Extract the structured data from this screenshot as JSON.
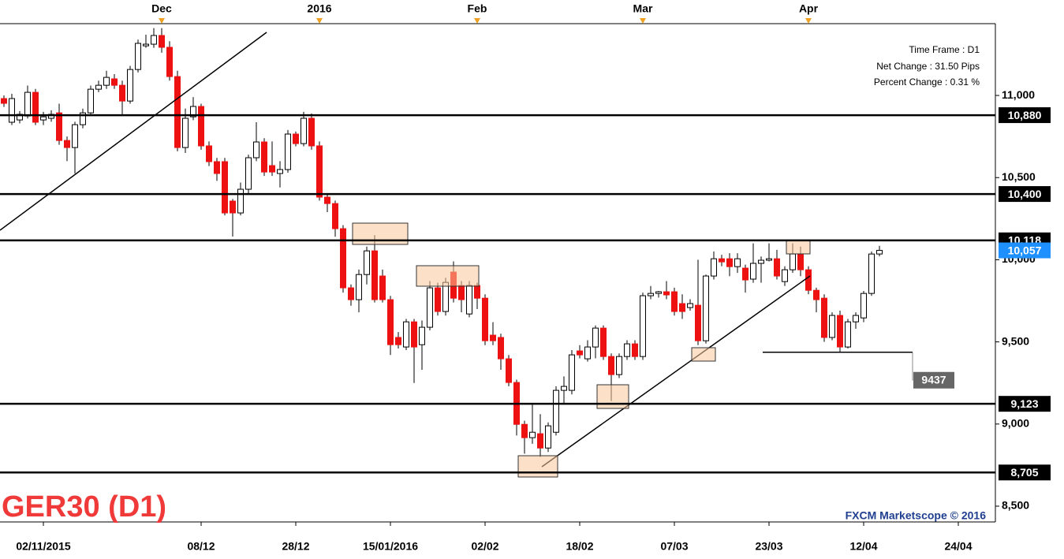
{
  "chart_data": {
    "type": "candlestick",
    "title": "GER30 (D1)",
    "watermark": "FXCM Marketscope © 2016",
    "info": [
      "Time Frame : D1",
      "Net Change : 31.50 Pips",
      "Percent Change : 0.31 %"
    ],
    "up_color": "#ffffff",
    "down_color": "#ee1111",
    "xlim": [
      -0.5,
      125.7
    ],
    "xticks": [
      {
        "value": 5,
        "label": "02/11/2015"
      },
      {
        "value": 25,
        "label": "08/12"
      },
      {
        "value": 37,
        "label": "28/12"
      },
      {
        "value": 49,
        "label": "15/01/2016"
      },
      {
        "value": 61,
        "label": "02/02"
      },
      {
        "value": 73,
        "label": "18/02"
      },
      {
        "value": 85,
        "label": "07/03"
      },
      {
        "value": 97,
        "label": "23/03"
      },
      {
        "value": 109,
        "label": "12/04"
      },
      {
        "value": 121,
        "label": "24/04"
      }
    ],
    "x2ticks": [
      {
        "value": 20,
        "label": "Dec"
      },
      {
        "value": 40,
        "label": "2016"
      },
      {
        "value": 60,
        "label": "Feb"
      },
      {
        "value": 81,
        "label": "Mar"
      },
      {
        "value": 102,
        "label": "Apr"
      }
    ],
    "ylim": [
      8404,
      11437
    ],
    "yticks": [
      {
        "value": 8500,
        "label": "8,500"
      },
      {
        "value": 9000,
        "label": "9,000"
      },
      {
        "value": 9500,
        "label": "9,500"
      },
      {
        "value": 10000,
        "label": "10,000"
      },
      {
        "value": 10500,
        "label": "10,500"
      },
      {
        "value": 11000,
        "label": "11,000"
      }
    ],
    "levels": [
      {
        "value": 10880,
        "label": "10,880"
      },
      {
        "value": 10400,
        "label": "10,400"
      },
      {
        "value": 10118,
        "label": "10,118"
      },
      {
        "value": 9123,
        "label": "9,123"
      },
      {
        "value": 8705,
        "label": "8,705"
      }
    ],
    "last_price": {
      "value": 10057,
      "label": "10,057"
    },
    "last_price_color": "#1e90ff",
    "support_marker": 9437,
    "open": [
      10981,
      10837,
      10851,
      10875,
      11019,
      10851,
      10861,
      10894,
      10726,
      10683,
      10822,
      10894,
      11038,
      11062,
      11101,
      11062,
      10966,
      11158,
      11302,
      11312,
      11365,
      11293,
      11115,
      10683,
      10870,
      10933,
      10693,
      10597,
      10597,
      10357,
      10285,
      10429,
      10621,
      10717,
      10573,
      10525,
      10549,
      10765,
      10707,
      10861,
      10693,
      10381,
      10342,
      10189,
      9829,
      9757,
      9910,
      10054,
      9901,
      9757,
      9527,
      9469,
      9622,
      9483,
      9589,
      9829,
      9685,
      9925,
      9843,
      9670,
      9843,
      9766,
      9541,
      9527,
      9397,
      9253,
      8998,
      8917,
      8941,
      8854,
      8950,
      9205,
      9205,
      9445,
      9397,
      9469,
      9584,
      9411,
      9301,
      9411,
      9488,
      9411,
      9781,
      9795,
      9805,
      9805,
      9733,
      9709,
      9723,
      9507,
      9901,
      10006,
      10006,
      9958,
      9949,
      9882,
      9978,
      9997,
      10006,
      9867,
      9939,
      10035,
      9939,
      9814,
      9766,
      9527,
      9661,
      9469,
      9622,
      9646,
      9795,
      10035
    ],
    "high": [
      11000,
      11010,
      10905,
      11060,
      11040,
      10900,
      10910,
      10950,
      10750,
      10840,
      10920,
      11060,
      11090,
      11150,
      11130,
      11090,
      11180,
      11340,
      11370,
      11410,
      11410,
      11330,
      11150,
      10920,
      10990,
      10950,
      10720,
      10620,
      10620,
      10370,
      10470,
      10640,
      10837,
      10740,
      10720,
      10600,
      10790,
      10780,
      10900,
      10890,
      10720,
      10400,
      10360,
      10210,
      9850,
      9940,
      10080,
      10150,
      9940,
      9780,
      9560,
      9640,
      9640,
      9630,
      9870,
      9860,
      9890,
      9990,
      9870,
      9870,
      9860,
      9790,
      9620,
      9550,
      9420,
      9270,
      9020,
      9120,
      9060,
      9010,
      9230,
      9290,
      9450,
      9480,
      9510,
      9600,
      9600,
      9430,
      9430,
      9510,
      9510,
      9800,
      9840,
      9810,
      9870,
      9830,
      9790,
      9760,
      10000,
      9910,
      10050,
      10030,
      10040,
      10040,
      9970,
      10100,
      10020,
      10100,
      10060,
      9960,
      10100,
      10080,
      9960,
      9830,
      9790,
      9680,
      9690,
      9640,
      9680,
      9810,
      10050,
      10085
    ],
    "low": [
      10930,
      10820,
      10830,
      10860,
      10820,
      10820,
      10840,
      10700,
      10600,
      10525,
      10800,
      10880,
      11020,
      11040,
      11040,
      10880,
      10950,
      11140,
      11290,
      11290,
      11260,
      11090,
      10660,
      10650,
      10850,
      10670,
      10570,
      10480,
      10270,
      10141,
      10270,
      10400,
      10600,
      10510,
      10510,
      10440,
      10530,
      10690,
      10690,
      10670,
      10360,
      10290,
      10140,
      9800,
      9720,
      9680,
      9850,
      9740,
      9740,
      9420,
      9460,
      9450,
      9250,
      9330,
      9570,
      9660,
      9660,
      9740,
      9680,
      9650,
      9700,
      9480,
      9480,
      9330,
      9230,
      8930,
      8820,
      8880,
      8800,
      8830,
      8930,
      9120,
      9180,
      9400,
      9380,
      9400,
      9390,
      9140,
      9280,
      9390,
      9390,
      9390,
      9760,
      9770,
      9760,
      9660,
      9640,
      9690,
      9480,
      9490,
      9880,
      9960,
      9900,
      9920,
      9800,
      9860,
      9860,
      9990,
      9880,
      9840,
      9920,
      9900,
      9790,
      9680,
      9500,
      9510,
      9437,
      9460,
      9580,
      9620,
      9780,
      10020
    ],
    "close": [
      10952,
      10981,
      10885,
      11019,
      10837,
      10870,
      10885,
      10726,
      10683,
      10822,
      10894,
      11038,
      11062,
      11110,
      11062,
      10966,
      11158,
      11317,
      11312,
      11365,
      11293,
      11115,
      10683,
      10861,
      10933,
      10693,
      10597,
      10525,
      10285,
      10285,
      10429,
      10621,
      10717,
      10534,
      10534,
      10549,
      10765,
      10707,
      10861,
      10693,
      10381,
      10342,
      10189,
      9829,
      9757,
      9910,
      10054,
      9757,
      9757,
      9483,
      9483,
      9622,
      9469,
      9589,
      9829,
      9685,
      9862,
      9766,
      9757,
      9843,
      9766,
      9507,
      9507,
      9397,
      9253,
      8998,
      8917,
      8950,
      8854,
      8989,
      9205,
      9229,
      9421,
      9421,
      9469,
      9584,
      9411,
      9301,
      9411,
      9488,
      9411,
      9781,
      9795,
      9805,
      9786,
      9685,
      9685,
      9733,
      9507,
      9901,
      10006,
      9987,
      9958,
      10006,
      9877,
      9978,
      9997,
      10006,
      9901,
      9939,
      10035,
      9939,
      9814,
      9757,
      9527,
      9661,
      9469,
      9622,
      9661,
      9795,
      10035,
      10057
    ]
  }
}
